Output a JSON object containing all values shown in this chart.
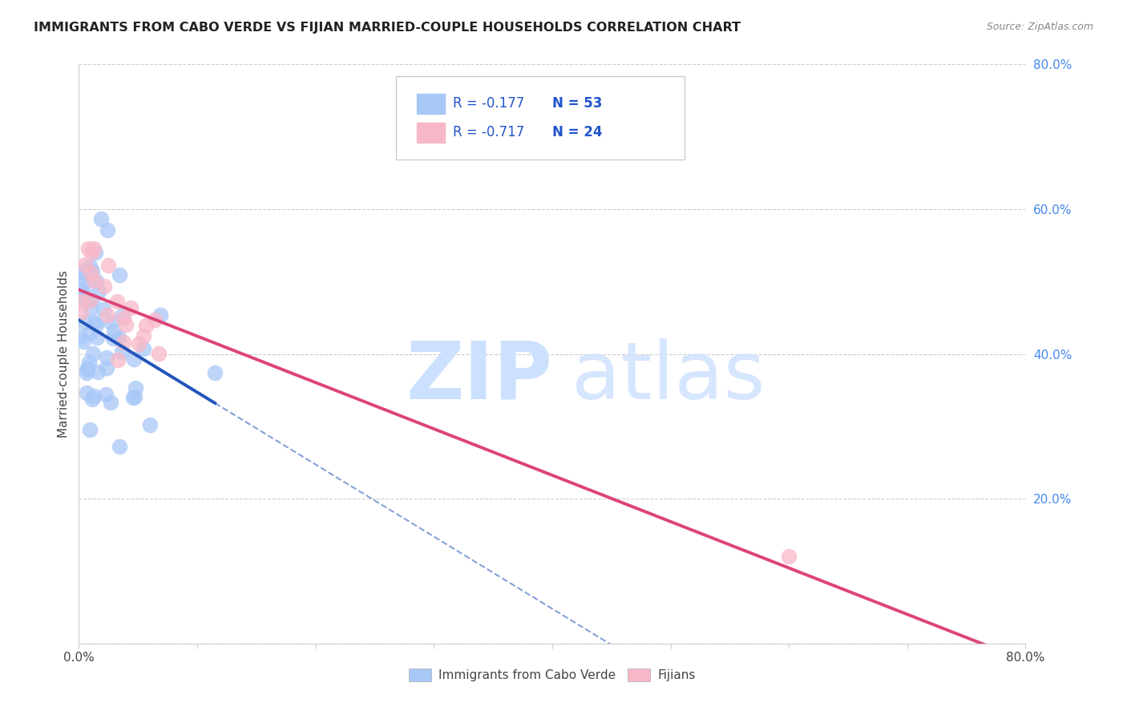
{
  "title": "IMMIGRANTS FROM CABO VERDE VS FIJIAN MARRIED-COUPLE HOUSEHOLDS CORRELATION CHART",
  "source": "Source: ZipAtlas.com",
  "ylabel": "Married-couple Households",
  "xlim": [
    0.0,
    0.8
  ],
  "ylim": [
    0.0,
    0.8
  ],
  "yticks": [
    0.0,
    0.2,
    0.4,
    0.6,
    0.8
  ],
  "ytick_labels": [
    "",
    "20.0%",
    "40.0%",
    "60.0%",
    "80.0%"
  ],
  "xticks": [
    0.0,
    0.1,
    0.2,
    0.3,
    0.4,
    0.5,
    0.6,
    0.7,
    0.8
  ],
  "background_color": "#ffffff",
  "blue_color": "#a8c8f8",
  "pink_color": "#f8b8c8",
  "blue_line_color": "#2255bb",
  "pink_line_color": "#dd4477",
  "legend_R_blue": "-0.177",
  "legend_N_blue": "53",
  "legend_R_pink": "-0.717",
  "legend_N_pink": "24",
  "legend_text_color": "#2255cc",
  "legend_N_color": "#2255cc",
  "blue_seed": 42,
  "pink_seed": 99
}
